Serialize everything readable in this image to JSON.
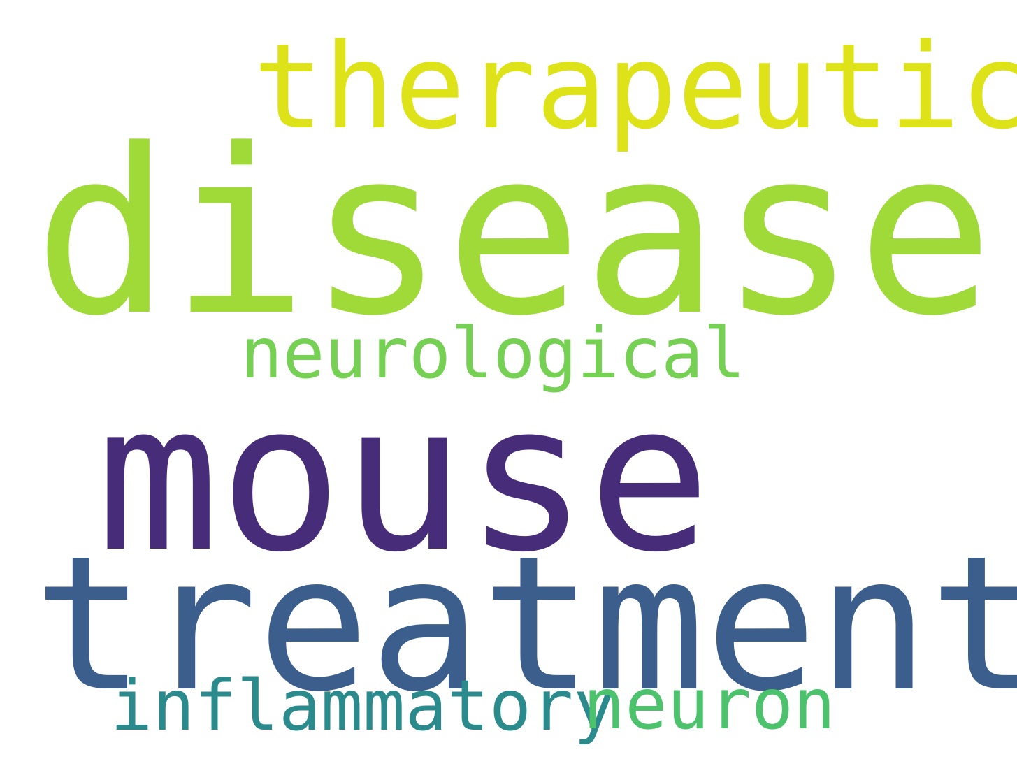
{
  "words": [
    {
      "text": "therapeutic",
      "color": "#dde318"
    },
    {
      "text": "disease",
      "color": "#a0da39"
    },
    {
      "text": "neurological",
      "color": "#75d054"
    },
    {
      "text": "mouse",
      "color": "#472c7a"
    },
    {
      "text": "treatment",
      "color": "#3b5e8c"
    },
    {
      "text": "inflammatory",
      "color": "#2a8a8c"
    },
    {
      "text": "neuron",
      "color": "#4cc26c"
    }
  ]
}
